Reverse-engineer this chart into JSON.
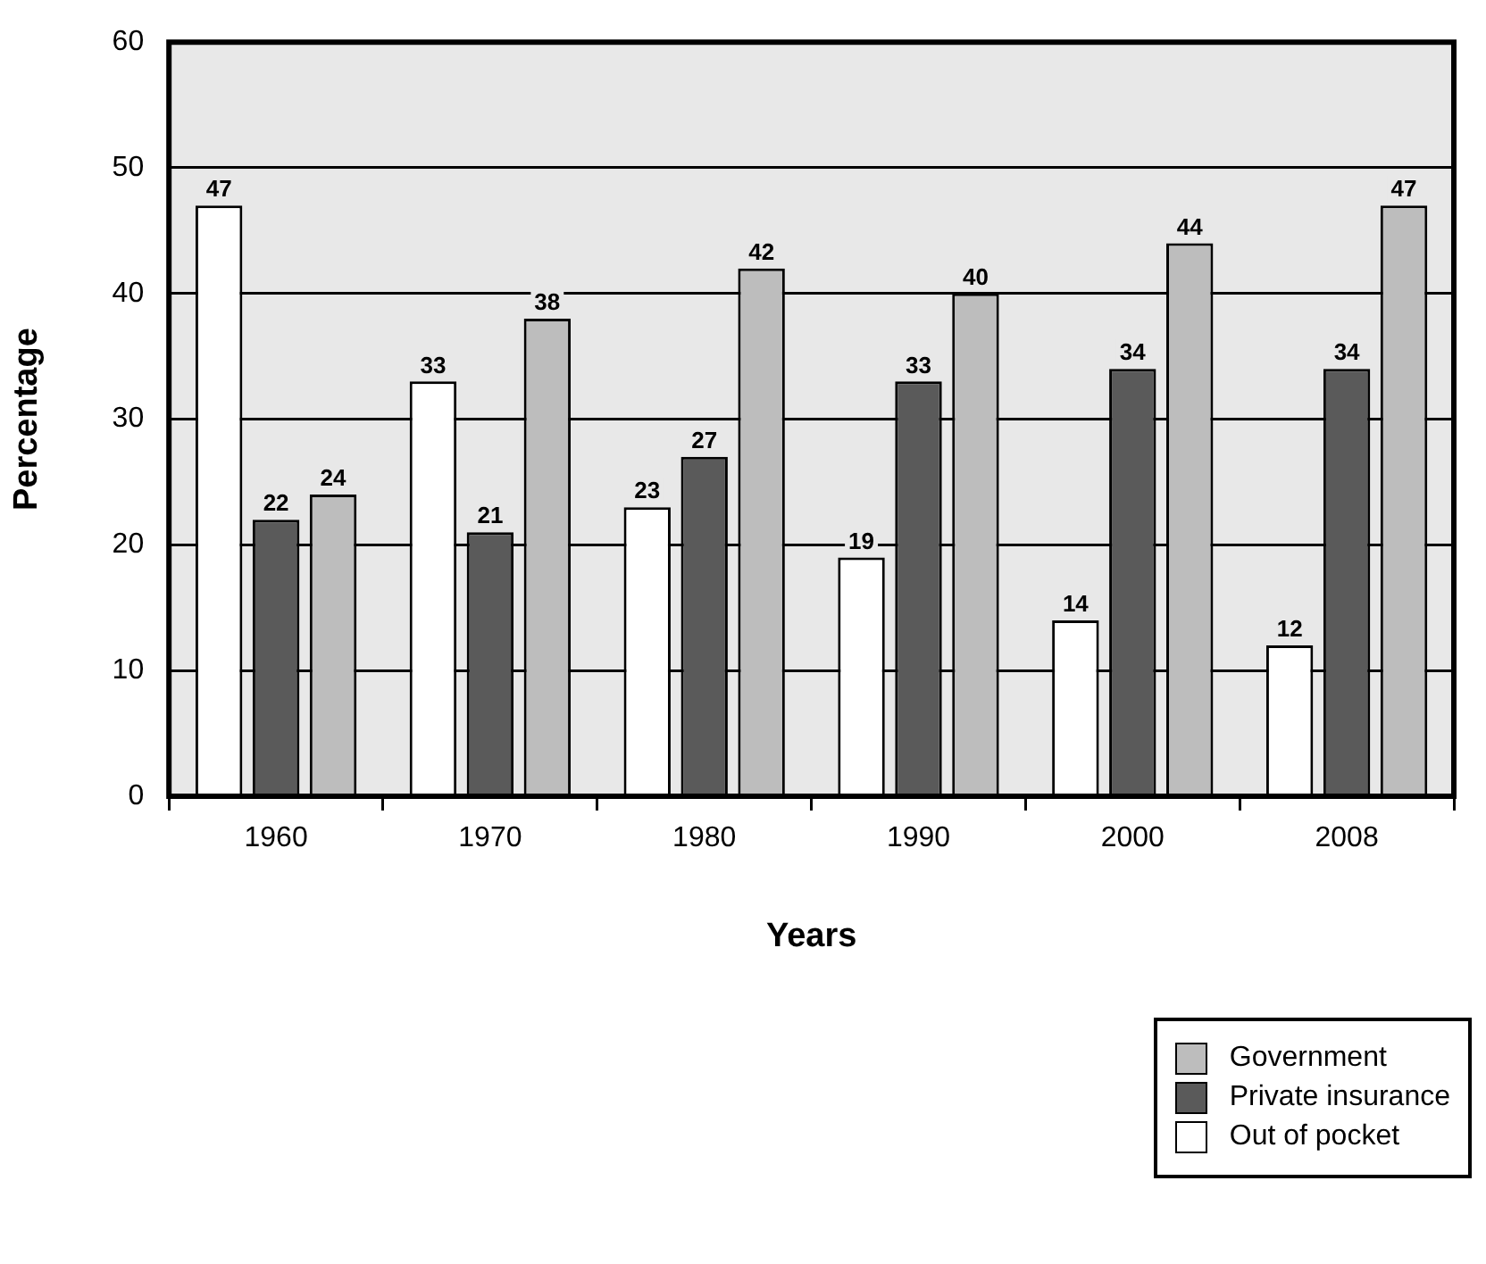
{
  "chart_data": {
    "type": "bar",
    "xlabel": "Years",
    "ylabel": "Percentage",
    "categories": [
      "1960",
      "1970",
      "1980",
      "1990",
      "2000",
      "2008"
    ],
    "series": [
      {
        "name": "Out of pocket",
        "color": "#ffffff",
        "values": [
          47,
          33,
          23,
          19,
          14,
          12
        ]
      },
      {
        "name": "Private insurance",
        "color": "#5a5a5a",
        "values": [
          22,
          21,
          27,
          33,
          34,
          34
        ]
      },
      {
        "name": "Government",
        "color": "#bdbdbd",
        "values": [
          24,
          38,
          42,
          40,
          44,
          47
        ]
      }
    ],
    "ylim": [
      0,
      60
    ],
    "yticks": [
      0,
      10,
      20,
      30,
      40,
      50,
      60
    ],
    "grid": "y",
    "legend": "bottom right",
    "data_labels": true
  }
}
